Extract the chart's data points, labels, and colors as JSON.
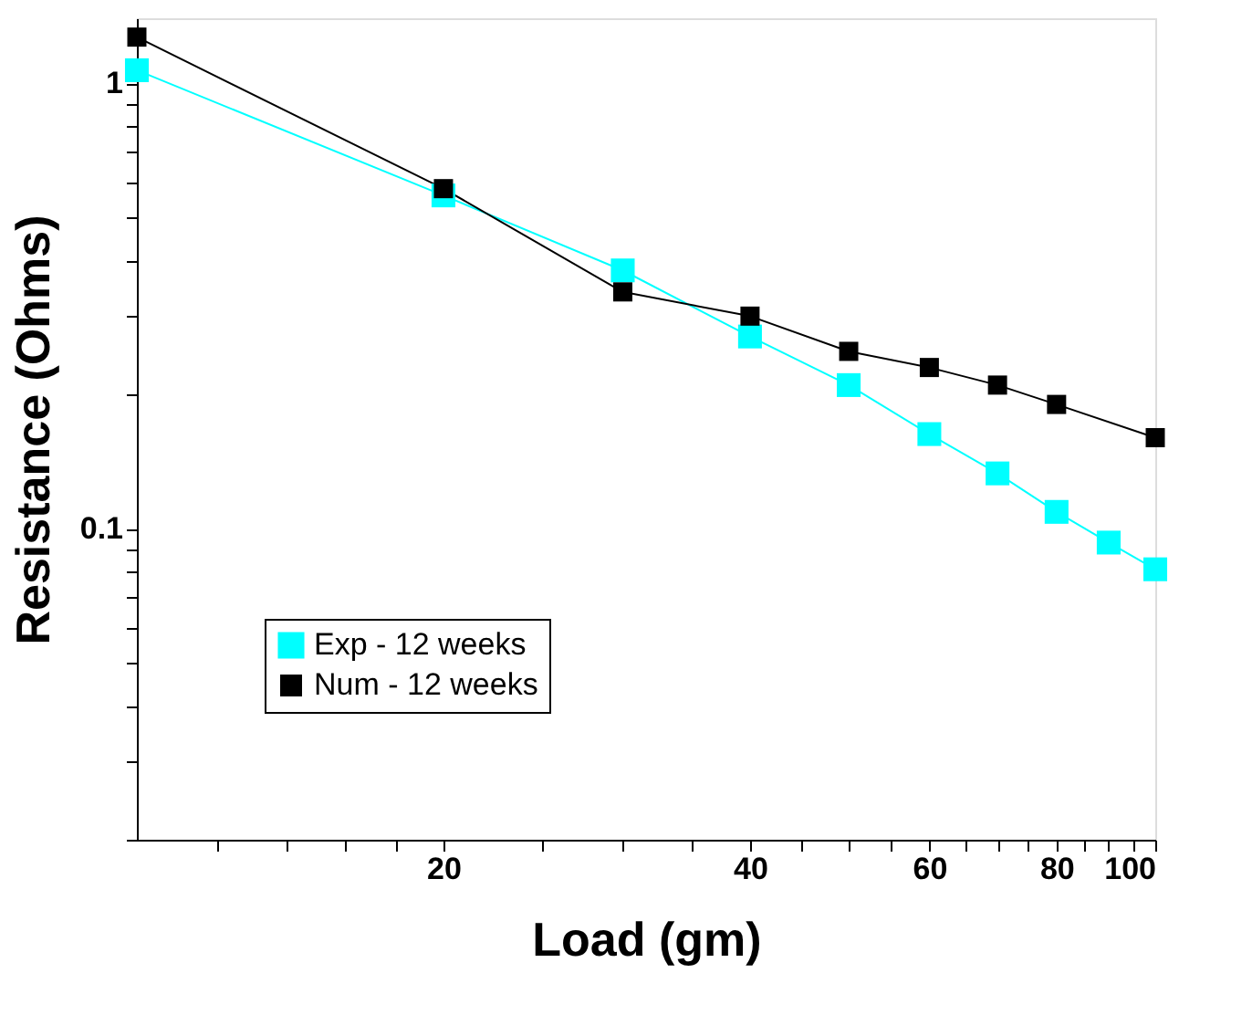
{
  "chart_data": {
    "type": "line",
    "xlabel": "Load (gm)",
    "ylabel": "Resistance (Ohms)",
    "log": "xy",
    "xlim": [
      10,
      100
    ],
    "ylim": [
      0.02,
      1.4
    ],
    "xticks": [
      {
        "value": 12,
        "label": null
      },
      {
        "value": 14,
        "label": null
      },
      {
        "value": 16,
        "label": null
      },
      {
        "value": 18,
        "label": null
      },
      20,
      {
        "value": 25,
        "label": null
      },
      {
        "value": 30,
        "label": null
      },
      {
        "value": 35,
        "label": null
      },
      40,
      {
        "value": 45,
        "label": null
      },
      {
        "value": 50,
        "label": null
      },
      {
        "value": 55,
        "label": null
      },
      60,
      {
        "value": 65,
        "label": null
      },
      {
        "value": 70,
        "label": null
      },
      {
        "value": 75,
        "label": null
      },
      80,
      {
        "value": 85,
        "label": null
      },
      {
        "value": 90,
        "label": null
      },
      {
        "value": 95,
        "label": null
      },
      100
    ],
    "yticks": [
      {
        "value": 0.02,
        "label": null
      },
      {
        "value": 0.03,
        "label": null
      },
      {
        "value": 0.04,
        "label": null
      },
      {
        "value": 0.05,
        "label": null
      },
      {
        "value": 0.06,
        "label": null
      },
      {
        "value": 0.07,
        "label": null
      },
      {
        "value": 0.08,
        "label": null
      },
      {
        "value": 0.09,
        "label": null
      },
      0.1,
      {
        "value": 0.2,
        "label": null
      },
      {
        "value": 0.3,
        "label": null
      },
      {
        "value": 0.4,
        "label": null
      },
      {
        "value": 0.5,
        "label": null
      },
      {
        "value": 0.6,
        "label": null
      },
      {
        "value": 0.7,
        "label": null
      },
      {
        "value": 0.8,
        "label": null
      },
      {
        "value": 0.9,
        "label": null
      },
      1
    ],
    "grid": false,
    "legend": "bottom left",
    "marker": "square",
    "line_style": "solid",
    "series": [
      {
        "name": "Exp - 12 weeks",
        "color": "#00ffff",
        "x": [
          10,
          20,
          30,
          40,
          50,
          60,
          70,
          80,
          90,
          100
        ],
        "values": [
          1.07,
          0.56,
          0.38,
          0.27,
          0.21,
          0.163,
          0.133,
          0.109,
          0.093,
          0.081
        ]
      },
      {
        "name": "Num - 12 weeks",
        "color": "#000000",
        "x": [
          10,
          20,
          30,
          40,
          50,
          60,
          70,
          80,
          100
        ],
        "values": [
          1.27,
          0.58,
          0.34,
          0.3,
          0.25,
          0.23,
          0.21,
          0.19,
          0.16
        ]
      }
    ]
  }
}
